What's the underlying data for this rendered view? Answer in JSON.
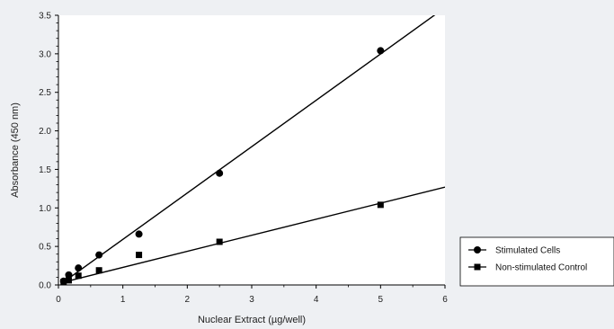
{
  "chart_data": {
    "type": "scatter",
    "xlabel": "Nuclear Extract (µg/well)",
    "ylabel": "Absorbance (450 nm)",
    "xlim": [
      0,
      6
    ],
    "ylim": [
      0,
      3.5
    ],
    "xticks": [
      "0",
      "1",
      "2",
      "3",
      "4",
      "5",
      "6"
    ],
    "yticks": [
      "0.0",
      "0.5",
      "1.0",
      "1.5",
      "2.0",
      "2.5",
      "3.0",
      "3.5"
    ],
    "grid": false,
    "legend_position": "right",
    "series": [
      {
        "name": "Stimulated Cells",
        "marker": "circle",
        "color": "#000000",
        "x": [
          0.08,
          0.16,
          0.31,
          0.63,
          1.25,
          2.5,
          5.0
        ],
        "y": [
          0.05,
          0.13,
          0.22,
          0.39,
          0.66,
          1.45,
          3.04
        ],
        "fit_line": [
          [
            0.05,
            0.02
          ],
          [
            6.0,
            3.6
          ]
        ]
      },
      {
        "name": "Non-stimulated Control",
        "marker": "square",
        "color": "#000000",
        "x": [
          0.08,
          0.16,
          0.31,
          0.63,
          1.25,
          2.5,
          5.0
        ],
        "y": [
          0.04,
          0.06,
          0.12,
          0.19,
          0.39,
          0.56,
          1.04
        ],
        "fit_line": [
          [
            0.05,
            0.03
          ],
          [
            6.0,
            1.27
          ]
        ]
      }
    ]
  }
}
